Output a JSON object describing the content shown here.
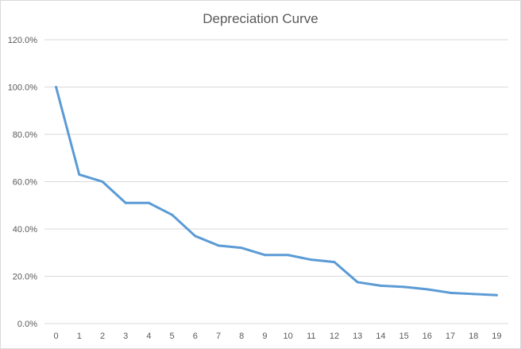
{
  "chart_data": {
    "type": "line",
    "title": "Depreciation Curve",
    "xlabel": "",
    "ylabel": "",
    "categories": [
      "0",
      "1",
      "2",
      "3",
      "4",
      "5",
      "6",
      "7",
      "8",
      "9",
      "10",
      "11",
      "12",
      "13",
      "14",
      "15",
      "16",
      "17",
      "18",
      "19"
    ],
    "series": [
      {
        "values": [
          100.0,
          63.0,
          60.0,
          51.0,
          51.0,
          46.0,
          37.0,
          33.0,
          32.0,
          29.0,
          29.0,
          27.0,
          26.0,
          17.5,
          16.0,
          15.5,
          14.5,
          13.0,
          12.5,
          12.0
        ],
        "color": "#5b9bd5"
      }
    ],
    "ylim": [
      0,
      120
    ],
    "y_ticks": [
      0,
      20,
      40,
      60,
      80,
      100,
      120
    ],
    "y_tick_labels": [
      "0.0%",
      "20.0%",
      "40.0%",
      "60.0%",
      "80.0%",
      "100.0%",
      "120.0%"
    ],
    "grid": true,
    "legend": "none"
  }
}
